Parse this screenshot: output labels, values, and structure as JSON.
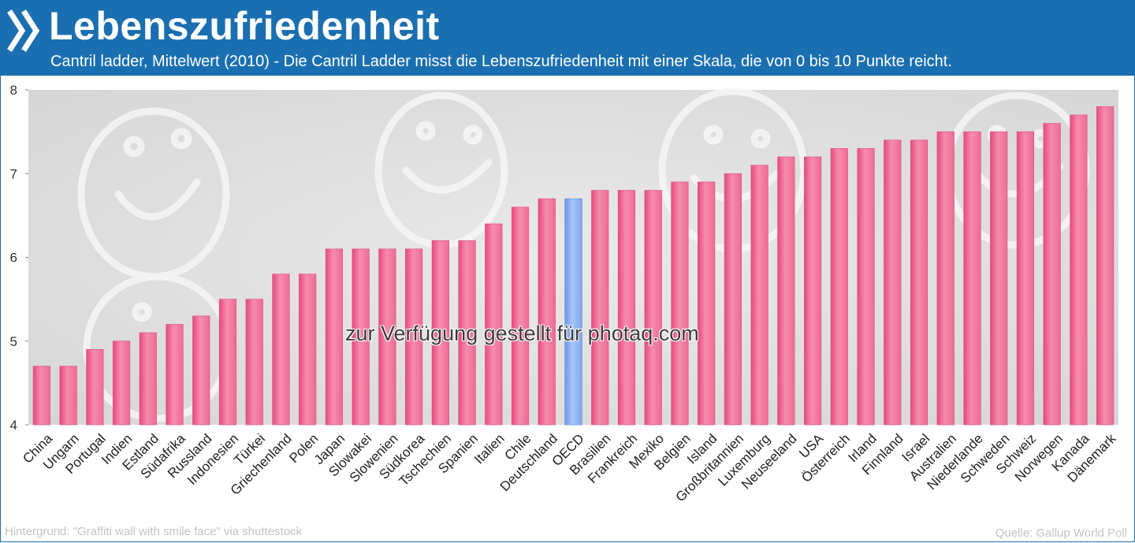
{
  "header": {
    "title": "Lebenszufriedenheit",
    "subtitle": "Cantril ladder, Mittelwert (2010) - Die Cantril Ladder misst die Lebenszufriedenheit mit einer Skala, die von 0 bis 10 Punkte reicht."
  },
  "colors": {
    "header_bg": "#1a6fb1",
    "bar": "#f26b97",
    "bar_highlight": "#86aef0",
    "plot_bg": "#e2e2e2"
  },
  "icons": {
    "logo": "double-chevron-icon"
  },
  "chart_data": {
    "type": "bar",
    "categories": [
      "China",
      "Ungarn",
      "Portugal",
      "Indien",
      "Estland",
      "Südafrika",
      "Russland",
      "Indonesien",
      "Türkei",
      "Griechenland",
      "Polen",
      "Japan",
      "Slowakei",
      "Slowenien",
      "Südkorea",
      "Tschechien",
      "Spanien",
      "Italien",
      "Chile",
      "Deutschland",
      "OECD",
      "Brasilien",
      "Frankreich",
      "Mexiko",
      "Belgien",
      "Island",
      "Großbritannien",
      "Luxemburg",
      "Neuseeland",
      "USA",
      "Österreich",
      "Irland",
      "Finnland",
      "Israel",
      "Australien",
      "Niederlande",
      "Schweden",
      "Schweiz",
      "Norwegen",
      "Kanada",
      "Dänemark"
    ],
    "values": [
      4.7,
      4.7,
      4.9,
      5.0,
      5.1,
      5.2,
      5.3,
      5.5,
      5.5,
      5.8,
      5.8,
      6.1,
      6.1,
      6.1,
      6.1,
      6.2,
      6.2,
      6.4,
      6.6,
      6.7,
      6.7,
      6.8,
      6.8,
      6.8,
      6.9,
      6.9,
      7.0,
      7.1,
      7.2,
      7.2,
      7.3,
      7.3,
      7.4,
      7.4,
      7.5,
      7.5,
      7.5,
      7.5,
      7.6,
      7.7,
      7.8
    ],
    "highlight": "OECD",
    "ylim": [
      4,
      8
    ],
    "yticks": [
      "4",
      "5",
      "6",
      "7",
      "8"
    ],
    "grid": false,
    "legend": "none"
  },
  "footer": {
    "credit_left": "Hintergrund: \"Graffiti wall with smile face\" via shuttestock",
    "source": "Quelle: Gallup World Poll",
    "watermark": "zur Verfügung gestellt für photaq.com"
  }
}
